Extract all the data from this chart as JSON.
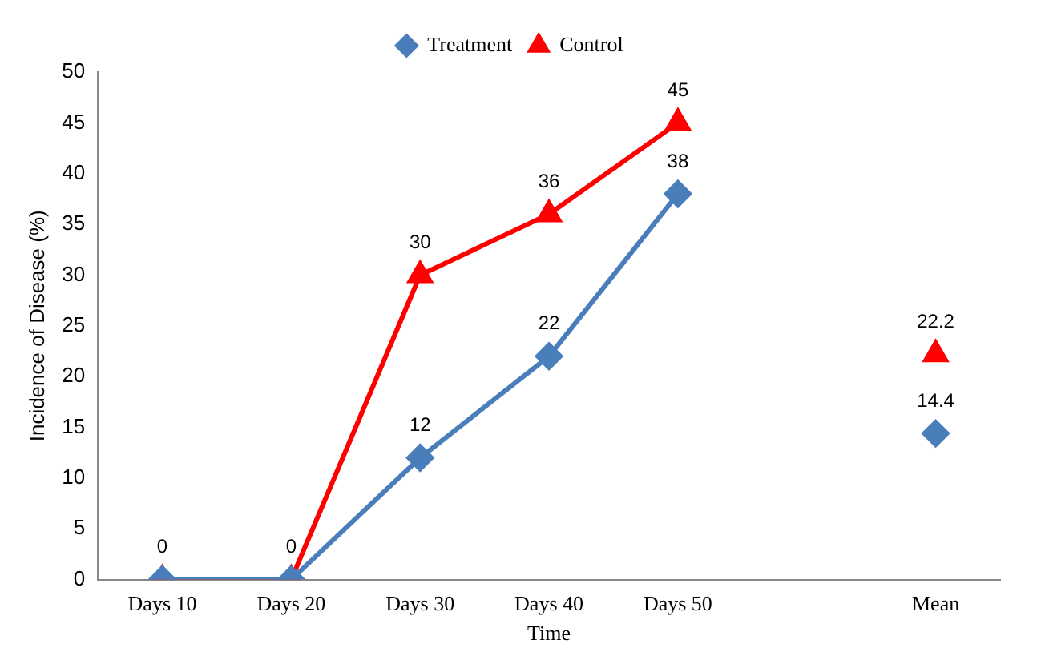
{
  "chart_data": {
    "type": "line",
    "xlabel": "Time",
    "ylabel": "Incidence of Disease (%)",
    "categories": [
      "Days 10",
      "Days 20",
      "Days 30",
      "Days 40",
      "Days 50",
      null,
      "Mean"
    ],
    "series": [
      {
        "name": "Treatment",
        "color": "#4a7ebb",
        "marker": "diamond",
        "values": [
          0,
          0,
          12,
          22,
          38,
          null,
          14.4
        ],
        "value_labels": [
          null,
          null,
          "12",
          "22",
          "38",
          null,
          "14.4"
        ]
      },
      {
        "name": "Control",
        "color": "#ff0000",
        "marker": "triangle",
        "values": [
          0,
          0,
          30,
          36,
          45,
          null,
          22.2
        ],
        "value_labels": [
          "0",
          "0",
          "30",
          "36",
          "45",
          null,
          "22.2"
        ]
      }
    ],
    "ylim": [
      0,
      50
    ],
    "yticks": [
      0,
      5,
      10,
      15,
      20,
      25,
      30,
      35,
      40,
      45,
      50
    ],
    "grid": false,
    "legend": "top"
  }
}
